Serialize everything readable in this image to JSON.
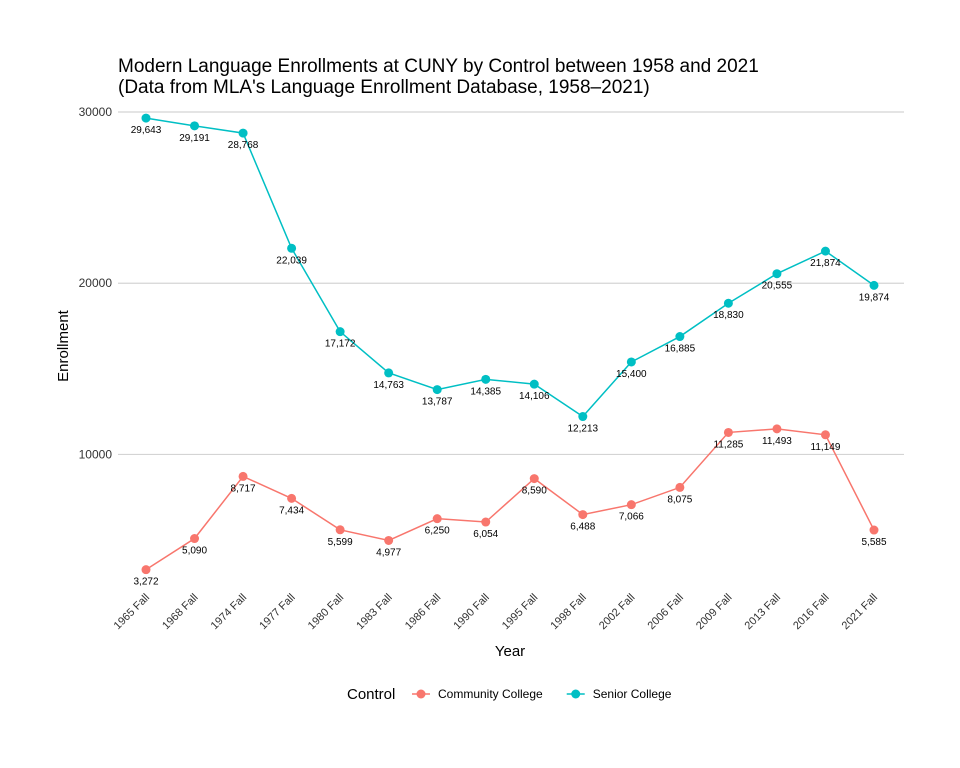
{
  "chart_data": {
    "type": "line",
    "title": "Modern Language Enrollments at CUNY by Control between 1958 and 2021",
    "subtitle": "(Data from MLA's Language Enrollment Database, 1958–2021)",
    "xlabel": "Year",
    "ylabel": "Enrollment",
    "categories": [
      "1965 Fall",
      "1968 Fall",
      "1974 Fall",
      "1977 Fall",
      "1980 Fall",
      "1983 Fall",
      "1986 Fall",
      "1990 Fall",
      "1995 Fall",
      "1998 Fall",
      "2002 Fall",
      "2006 Fall",
      "2009 Fall",
      "2013 Fall",
      "2016 Fall",
      "2021 Fall"
    ],
    "yticks": [
      10000,
      20000,
      30000
    ],
    "ytick_labels": [
      "10000",
      "20000",
      "30000"
    ],
    "ylim": [
      2200,
      30700
    ],
    "grid": true,
    "legend_title": "Control",
    "legend_position": "bottom",
    "series": [
      {
        "name": "Community College",
        "color": "#F8766D",
        "values": [
          3272,
          5090,
          8717,
          7434,
          5599,
          4977,
          6250,
          6054,
          8590,
          6488,
          7066,
          8075,
          11285,
          11493,
          11149,
          5585
        ],
        "labels": [
          "3,272",
          "5,090",
          "8,717",
          "7,434",
          "5,599",
          "4,977",
          "6,250",
          "6,054",
          "8,590",
          "6,488",
          "7,066",
          "8,075",
          "11,285",
          "11,493",
          "11,149",
          "5,585"
        ]
      },
      {
        "name": "Senior College",
        "color": "#00BFC4",
        "values": [
          29643,
          29191,
          28768,
          22039,
          17172,
          14763,
          13787,
          14385,
          14106,
          12213,
          15400,
          16885,
          18830,
          20555,
          21874,
          19874
        ],
        "labels": [
          "29,643",
          "29,191",
          "28,768",
          "22,039",
          "17,172",
          "14,763",
          "13,787",
          "14,385",
          "14,106",
          "12,213",
          "15,400",
          "16,885",
          "18,830",
          "20,555",
          "21,874",
          "19,874"
        ]
      }
    ]
  }
}
